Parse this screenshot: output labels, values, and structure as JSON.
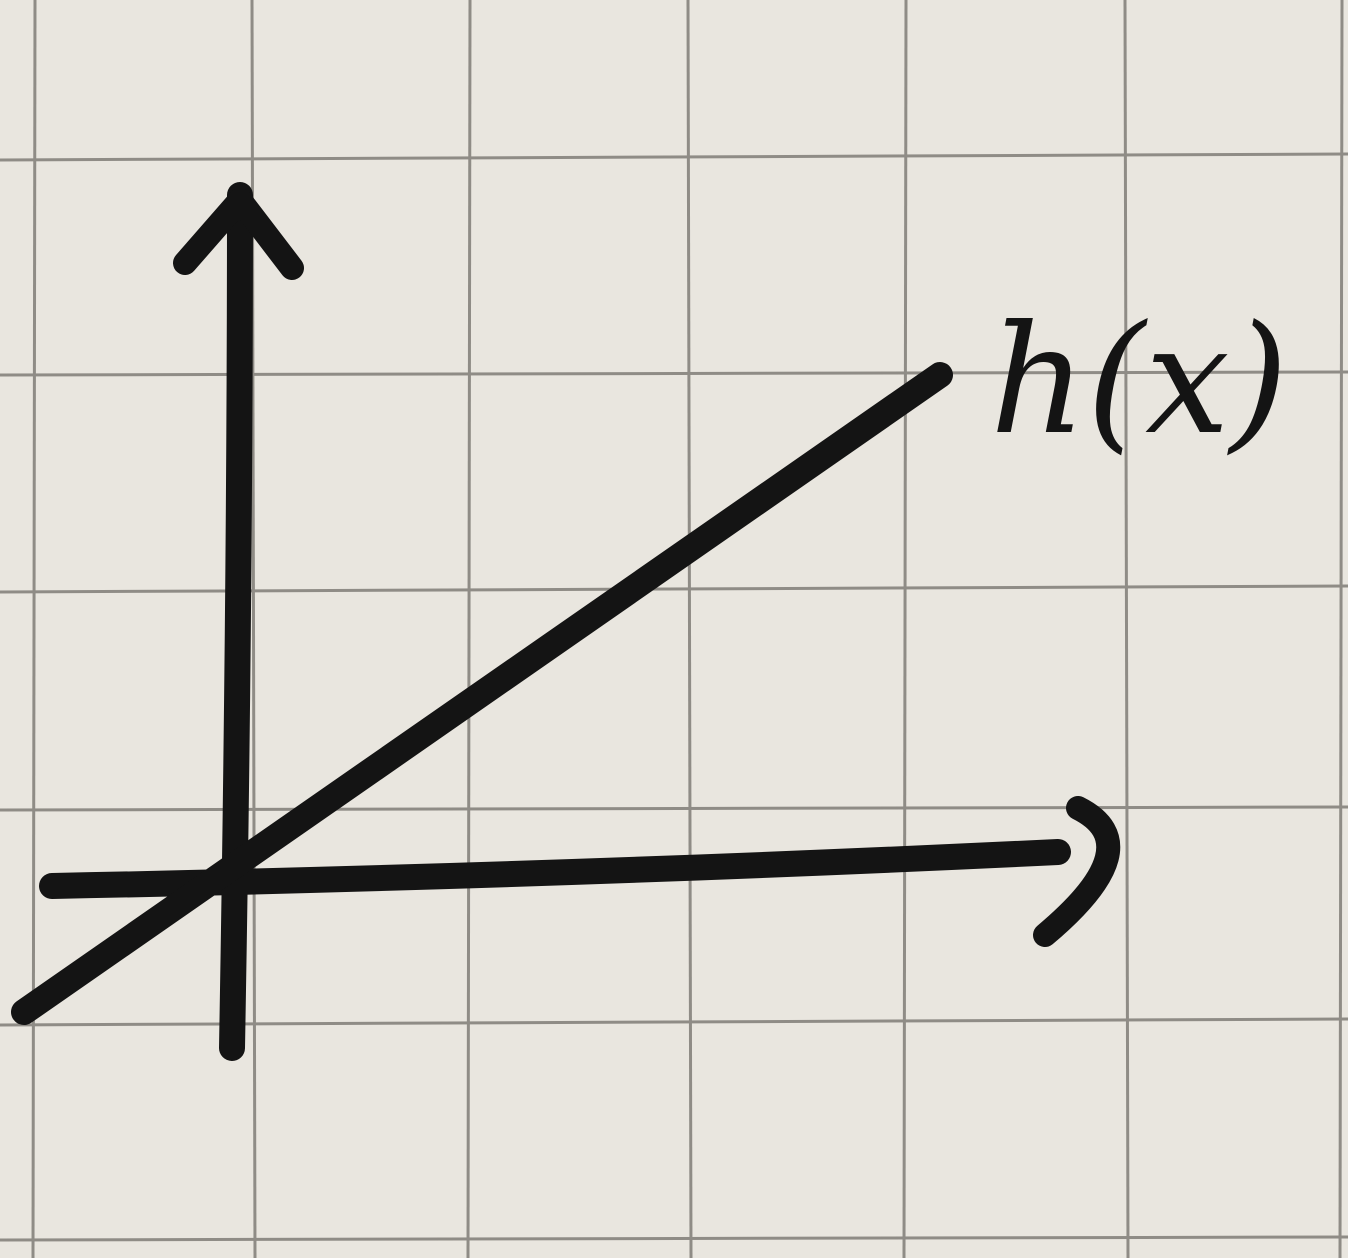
{
  "colors": {
    "paper": "#e9e6df",
    "grid": "#8f8c86",
    "ink": "#141414"
  },
  "chart_data": {
    "type": "line",
    "title": "",
    "xlabel": "",
    "ylabel": "",
    "grid": true,
    "axes": {
      "x_arrow": true,
      "y_arrow": true
    },
    "series": [
      {
        "name": "h(x)",
        "trend": "linear-increasing",
        "passes_through_origin": true
      }
    ]
  }
}
